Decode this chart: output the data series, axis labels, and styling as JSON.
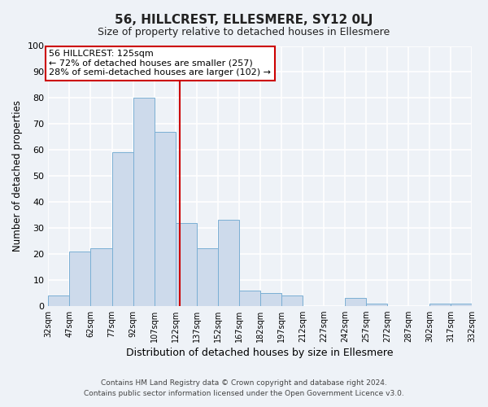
{
  "title": "56, HILLCREST, ELLESMERE, SY12 0LJ",
  "subtitle": "Size of property relative to detached houses in Ellesmere",
  "xlabel": "Distribution of detached houses by size in Ellesmere",
  "ylabel": "Number of detached properties",
  "bar_left_edges": [
    32,
    47,
    62,
    77,
    92,
    107,
    122,
    137,
    152,
    167,
    182,
    197,
    212,
    227,
    242,
    257,
    272,
    287,
    302,
    317
  ],
  "bar_heights": [
    4,
    21,
    22,
    59,
    80,
    67,
    32,
    22,
    33,
    6,
    5,
    4,
    0,
    0,
    3,
    1,
    0,
    0,
    1,
    1
  ],
  "bin_width": 15,
  "bar_facecolor": "#cddaeb",
  "bar_edgecolor": "#7aafd4",
  "vline_x": 125,
  "vline_color": "#cc0000",
  "annotation_line1": "56 HILLCREST: 125sqm",
  "annotation_line2": "← 72% of detached houses are smaller (257)",
  "annotation_line3": "28% of semi-detached houses are larger (102) →",
  "annotation_box_facecolor": "white",
  "annotation_box_edgecolor": "#cc0000",
  "ylim": [
    0,
    100
  ],
  "yticks": [
    0,
    10,
    20,
    30,
    40,
    50,
    60,
    70,
    80,
    90,
    100
  ],
  "tick_labels": [
    "32sqm",
    "47sqm",
    "62sqm",
    "77sqm",
    "92sqm",
    "107sqm",
    "122sqm",
    "137sqm",
    "152sqm",
    "167sqm",
    "182sqm",
    "197sqm",
    "212sqm",
    "227sqm",
    "242sqm",
    "257sqm",
    "272sqm",
    "287sqm",
    "302sqm",
    "317sqm",
    "332sqm"
  ],
  "background_color": "#eef2f7",
  "grid_color": "#ffffff",
  "footer_line1": "Contains HM Land Registry data © Crown copyright and database right 2024.",
  "footer_line2": "Contains public sector information licensed under the Open Government Licence v3.0."
}
